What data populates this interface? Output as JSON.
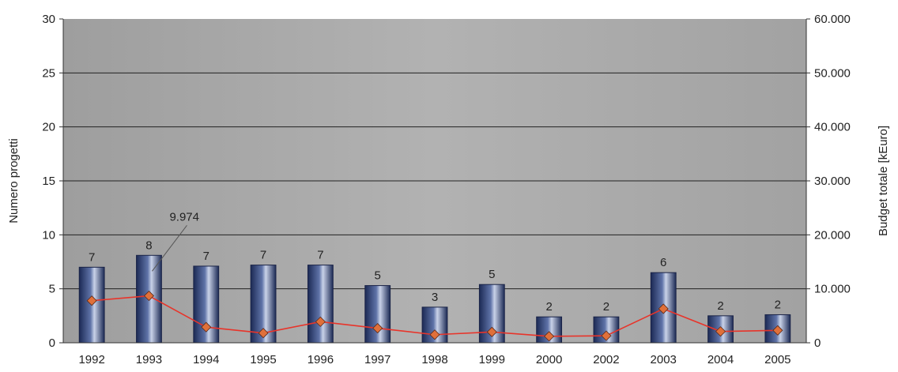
{
  "chart_data": {
    "type": "bar",
    "categories": [
      "1992",
      "1993",
      "1994",
      "1995",
      "1996",
      "1997",
      "1998",
      "1999",
      "2000",
      "2002",
      "2003",
      "2004",
      "2005"
    ],
    "series": [
      {
        "type": "bar",
        "axis": "left",
        "values": [
          7,
          8,
          7,
          7,
          7,
          5,
          3,
          5,
          2,
          2,
          6,
          2,
          2
        ],
        "bar_heights": [
          7.0,
          8.1,
          7.1,
          7.2,
          7.2,
          5.3,
          3.3,
          5.4,
          2.4,
          2.4,
          6.5,
          2.5,
          2.6
        ],
        "labels": [
          "7",
          "8",
          "7",
          "7",
          "7",
          "5",
          "3",
          "5",
          "2",
          "2",
          "6",
          "2",
          "2"
        ],
        "color": "#1f2f5c"
      },
      {
        "type": "line",
        "axis": "right",
        "values": [
          7800,
          8700,
          2900,
          1800,
          3900,
          2700,
          1500,
          2000,
          1200,
          1300,
          6300,
          2100,
          2300
        ],
        "color": "#e8342a",
        "marker_color": "#e0703a"
      }
    ],
    "ylabel": "Numero progetti",
    "ylabel_right": "Budget totale [kEuro]",
    "ylim": [
      0,
      30
    ],
    "ylim_right": [
      0,
      60000
    ],
    "yticks": [
      "0",
      "5",
      "10",
      "15",
      "20",
      "25",
      "30"
    ],
    "yticks_right": [
      "0",
      "10.000",
      "20.000",
      "30.000",
      "40.000",
      "50.000",
      "60.000"
    ],
    "annotation": {
      "text": "9.974",
      "category": "1993"
    },
    "grid": true,
    "background": "#a8a8a8"
  }
}
